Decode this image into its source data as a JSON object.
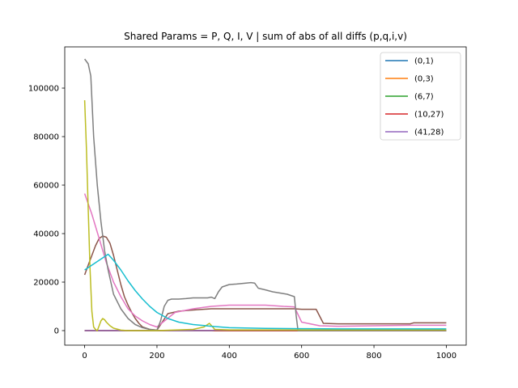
{
  "chart_data": {
    "type": "line",
    "title": "Shared Params = P, Q, I, V | sum of abs of all diffs (p,q,i,v)",
    "xlabel": "",
    "ylabel": "",
    "xlim": [
      -55,
      1055
    ],
    "ylim": [
      -6000,
      117000
    ],
    "xticks": [
      0,
      200,
      400,
      600,
      800,
      1000
    ],
    "yticks": [
      0,
      20000,
      40000,
      60000,
      80000,
      100000
    ],
    "grid": false,
    "legend_position": "top-right",
    "legend_entries": [
      "(0,1)",
      "(0,3)",
      "(6,7)",
      "(10,27)",
      "(41,28)"
    ],
    "series": [
      {
        "name": "(0,1)",
        "color": "#1f77b4",
        "x": [
          0,
          1000
        ],
        "y": [
          0,
          0
        ]
      },
      {
        "name": "(0,3)",
        "color": "#ff7f0e",
        "x": [
          0,
          1000
        ],
        "y": [
          0,
          0
        ]
      },
      {
        "name": "(6,7)",
        "color": "#2ca02c",
        "x": [
          0,
          1000
        ],
        "y": [
          0,
          0
        ]
      },
      {
        "name": "(10,27)",
        "color": "#d62728",
        "x": [
          0,
          1000
        ],
        "y": [
          0,
          0
        ]
      },
      {
        "name": "(41,28)",
        "color": "#9467bd",
        "x": [
          0,
          350,
          360,
          1000
        ],
        "y": [
          0,
          0,
          200,
          200
        ]
      },
      {
        "color": "#8c564b",
        "x": [
          0,
          10,
          20,
          30,
          40,
          50,
          60,
          70,
          80,
          90,
          100,
          110,
          120,
          130,
          140,
          150,
          160,
          180,
          200,
          230,
          260,
          300,
          350,
          400,
          450,
          500,
          550,
          580,
          600,
          620,
          640,
          660,
          700,
          800,
          900,
          910,
          1000
        ],
        "y": [
          23000,
          27000,
          31000,
          35000,
          38000,
          39000,
          38500,
          36000,
          31000,
          25000,
          19000,
          14000,
          10500,
          7500,
          5000,
          3000,
          1500,
          500,
          200,
          7000,
          8000,
          8500,
          9000,
          9000,
          9000,
          9000,
          9000,
          9000,
          8800,
          8800,
          8800,
          3000,
          2800,
          2800,
          2800,
          3200,
          3200
        ]
      },
      {
        "color": "#e377c2",
        "x": [
          0,
          20,
          40,
          60,
          80,
          100,
          120,
          140,
          160,
          180,
          200,
          250,
          300,
          350,
          400,
          450,
          500,
          550,
          580,
          600,
          650,
          700,
          800,
          900,
          1000
        ],
        "y": [
          56500,
          48000,
          38000,
          28000,
          20000,
          14000,
          9000,
          6000,
          4000,
          2500,
          1500,
          7500,
          9000,
          10000,
          10500,
          10500,
          10500,
          10000,
          9800,
          3500,
          2000,
          1800,
          2000,
          2200,
          2200
        ]
      },
      {
        "color": "#7f7f7f",
        "x": [
          0,
          10,
          17,
          25,
          35,
          45,
          55,
          65,
          80,
          100,
          120,
          140,
          160,
          180,
          200,
          210,
          220,
          230,
          240,
          260,
          280,
          300,
          320,
          340,
          350,
          360,
          370,
          380,
          400,
          420,
          440,
          460,
          470,
          480,
          500,
          520,
          540,
          560,
          580,
          585,
          590,
          600,
          620,
          660,
          700,
          800,
          900,
          1000
        ],
        "y": [
          112000,
          110000,
          105000,
          80000,
          60000,
          45000,
          33000,
          25000,
          15000,
          9000,
          5000,
          2500,
          1200,
          500,
          200,
          4000,
          10000,
          12500,
          13000,
          13000,
          13200,
          13500,
          13500,
          13500,
          13800,
          13200,
          16000,
          18000,
          19000,
          19200,
          19500,
          19800,
          19600,
          17500,
          16800,
          16000,
          15500,
          15000,
          14000,
          6000,
          0,
          0,
          0,
          0,
          0,
          0,
          0,
          0
        ]
      },
      {
        "color": "#bcbd22",
        "x": [
          0,
          5,
          10,
          15,
          20,
          25,
          30,
          35,
          40,
          45,
          50,
          55,
          60,
          70,
          80,
          100,
          120,
          150,
          200,
          300,
          330,
          345,
          360,
          400,
          500,
          600,
          700,
          800,
          900,
          1000
        ],
        "y": [
          95000,
          75000,
          50000,
          25000,
          8000,
          1500,
          500,
          0,
          2000,
          4000,
          5000,
          4500,
          3500,
          2000,
          1000,
          200,
          0,
          0,
          0,
          500,
          1500,
          3000,
          500,
          300,
          300,
          300,
          300,
          300,
          300,
          300
        ]
      },
      {
        "color": "#17becf",
        "x": [
          0,
          15,
          30,
          45,
          55,
          65,
          80,
          100,
          120,
          140,
          160,
          180,
          200,
          230,
          260,
          300,
          350,
          400,
          500,
          600,
          700,
          800,
          900,
          1000
        ],
        "y": [
          25000,
          26500,
          28000,
          29500,
          30500,
          31500,
          29000,
          25000,
          20500,
          16500,
          13000,
          10000,
          7500,
          5000,
          3500,
          2500,
          1800,
          1200,
          900,
          800,
          700,
          700,
          700,
          700
        ]
      }
    ]
  }
}
